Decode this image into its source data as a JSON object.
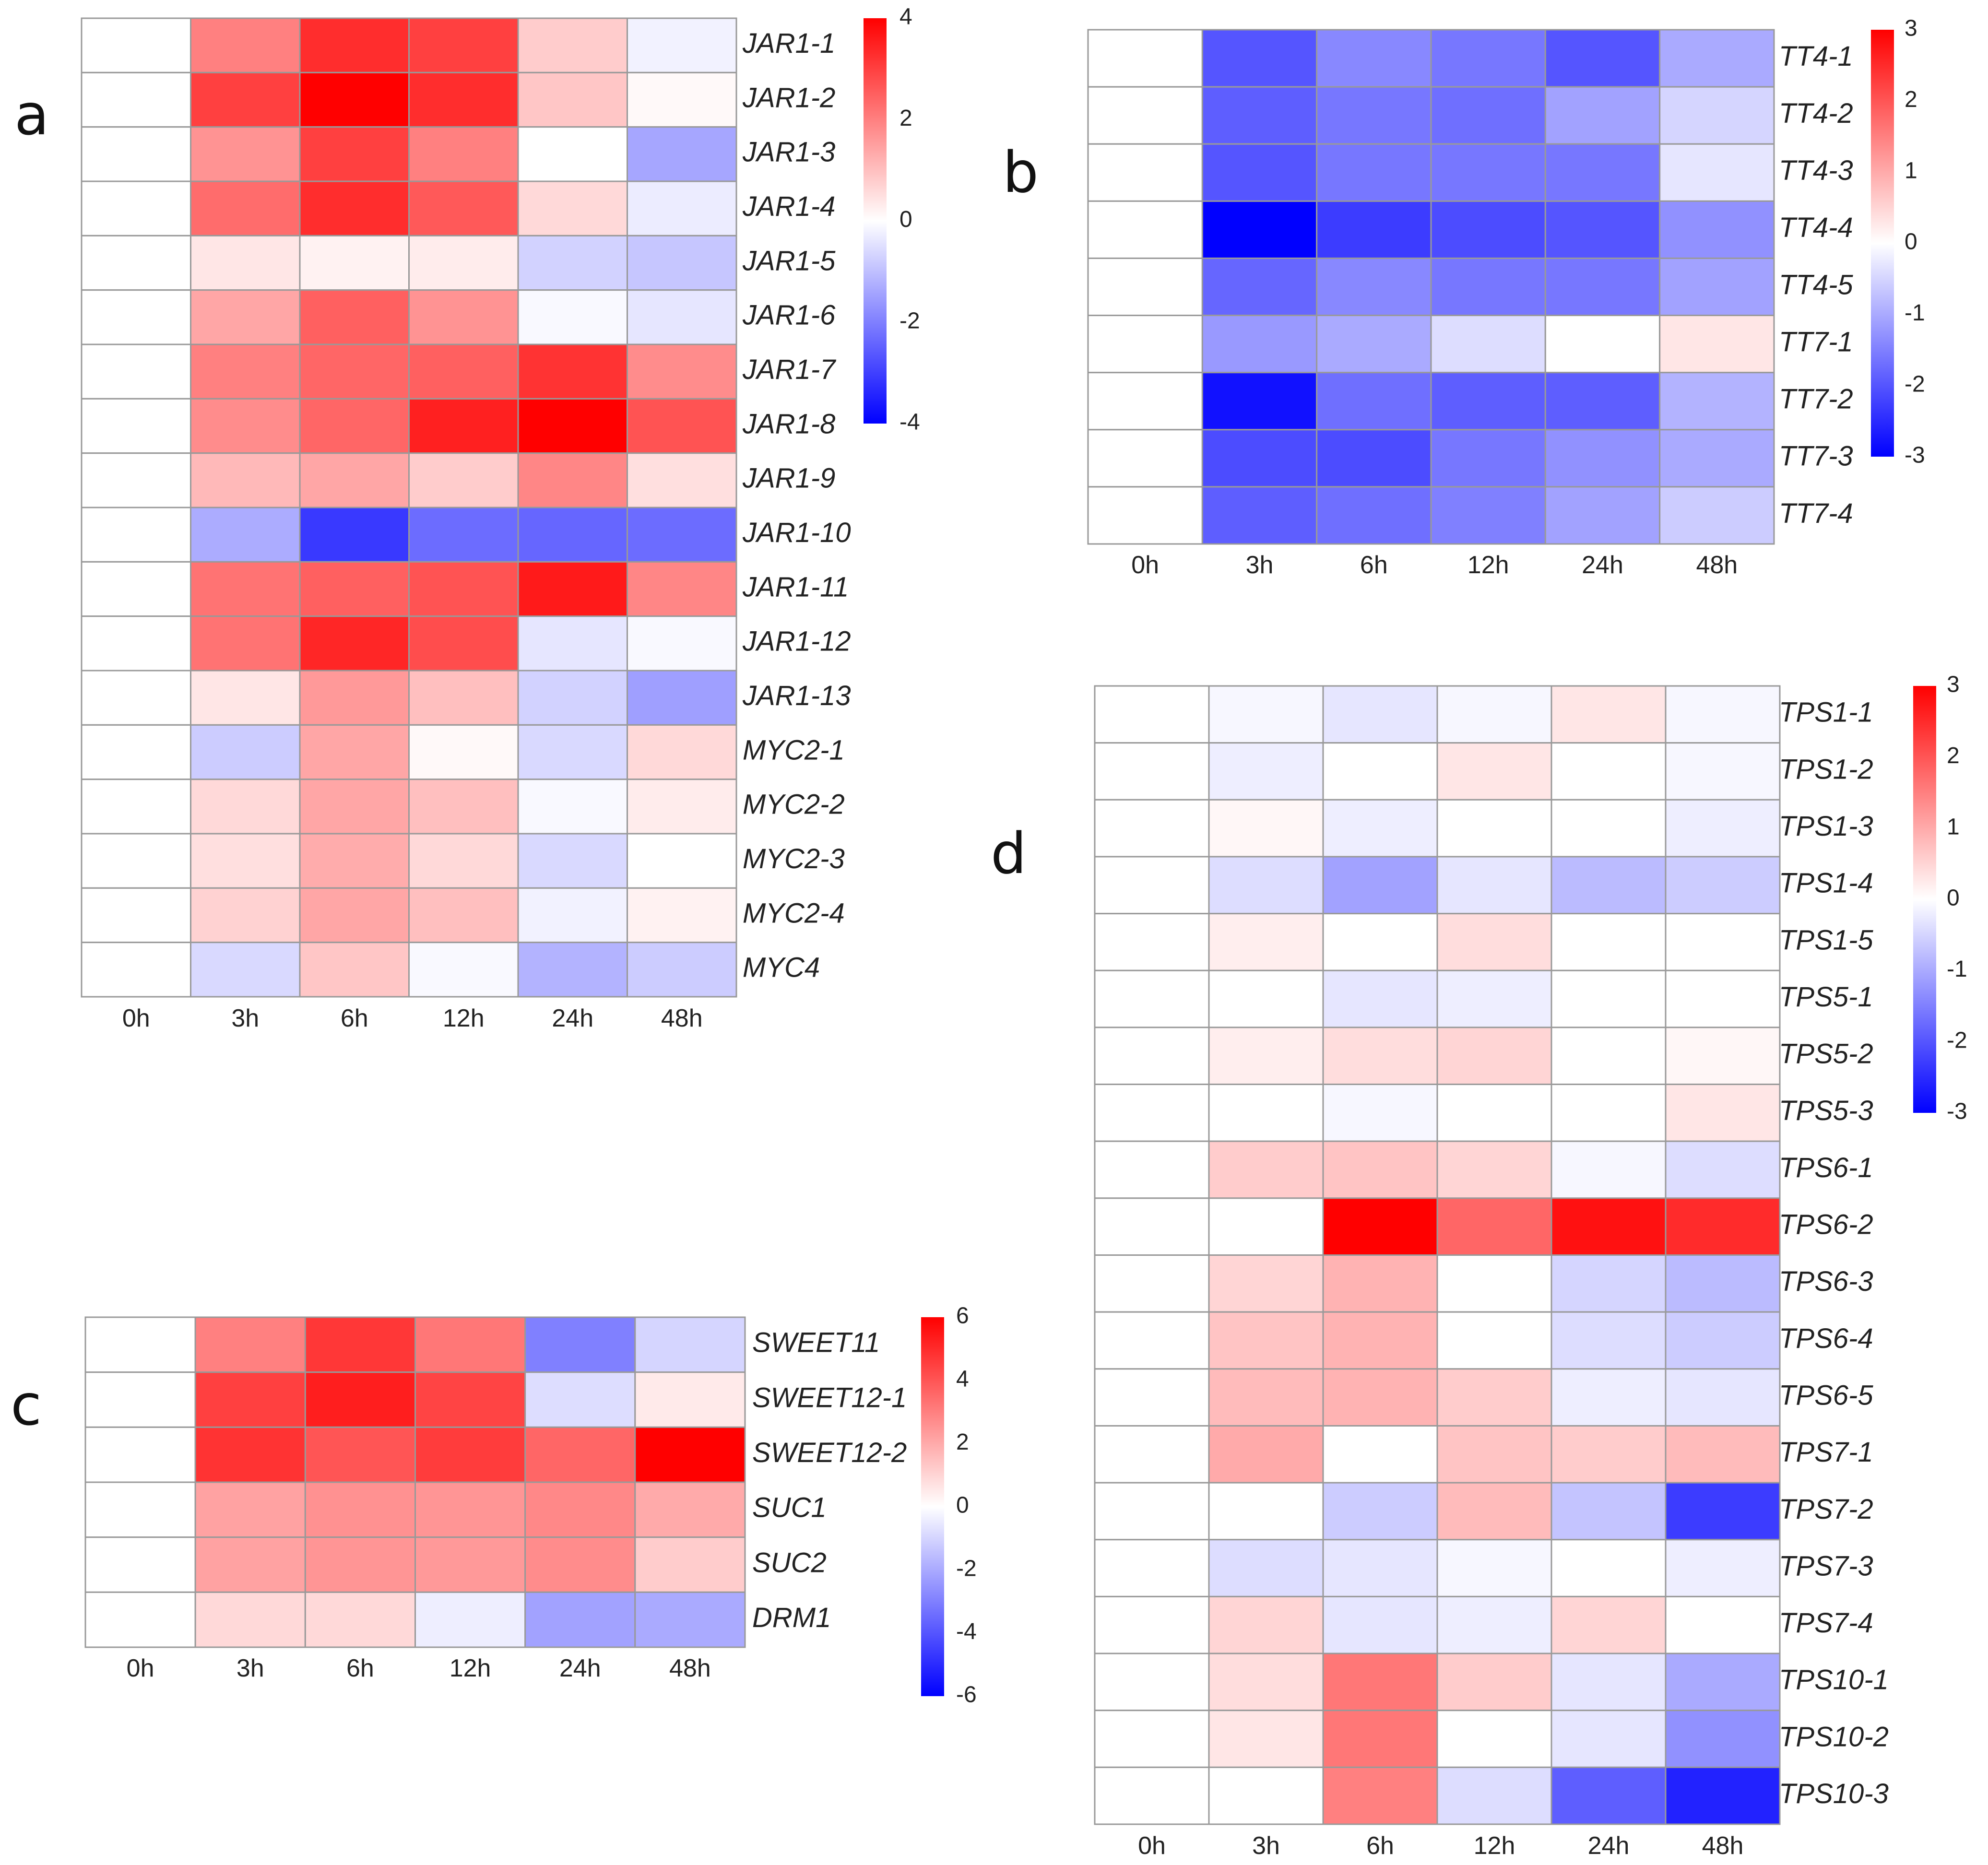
{
  "colors": {
    "low": "#0000ff",
    "mid": "#ffffff",
    "high": "#ff0000",
    "grid": "#999999"
  },
  "time_points": [
    "0h",
    "3h",
    "6h",
    "12h",
    "24h",
    "48h"
  ],
  "chart_data": [
    {
      "panel": "a",
      "type": "heatmap",
      "columns": [
        "0h",
        "3h",
        "6h",
        "12h",
        "24h",
        "48h"
      ],
      "rows": [
        "JAR1-1",
        "JAR1-2",
        "JAR1-3",
        "JAR1-4",
        "JAR1-5",
        "JAR1-6",
        "JAR1-7",
        "JAR1-8",
        "JAR1-9",
        "JAR1-10",
        "JAR1-11",
        "JAR1-12",
        "JAR1-13",
        "MYC2-1",
        "MYC2-2",
        "MYC2-3",
        "MYC2-4",
        "MYC4"
      ],
      "values": [
        [
          0,
          2.0,
          3.3,
          3.0,
          0.8,
          -0.2
        ],
        [
          0,
          3.0,
          4.0,
          3.3,
          0.9,
          0.1
        ],
        [
          0,
          1.7,
          3.0,
          2.0,
          0.0,
          -1.4
        ],
        [
          0,
          2.3,
          3.3,
          2.6,
          0.6,
          -0.3
        ],
        [
          0,
          0.4,
          0.2,
          0.3,
          -0.7,
          -0.9
        ],
        [
          0,
          1.4,
          2.5,
          1.7,
          -0.1,
          -0.4
        ],
        [
          0,
          2.0,
          2.4,
          2.5,
          3.2,
          1.8
        ],
        [
          0,
          1.8,
          2.4,
          3.5,
          4.0,
          2.7
        ],
        [
          0,
          1.1,
          1.4,
          0.8,
          1.9,
          0.5
        ],
        [
          0,
          -1.3,
          -3.1,
          -2.3,
          -2.4,
          -2.3
        ],
        [
          0,
          2.2,
          2.5,
          2.7,
          3.6,
          1.9
        ],
        [
          0,
          2.2,
          3.4,
          2.8,
          -0.4,
          -0.1
        ],
        [
          0,
          0.4,
          1.6,
          1.0,
          -0.7,
          -1.5
        ],
        [
          0,
          -0.8,
          1.4,
          0.1,
          -0.6,
          0.6
        ],
        [
          0,
          0.6,
          1.4,
          1.0,
          -0.1,
          0.3
        ],
        [
          0,
          0.5,
          1.3,
          0.6,
          -0.6,
          0.0
        ],
        [
          0,
          0.7,
          1.4,
          1.0,
          -0.2,
          0.2
        ],
        [
          0,
          -0.6,
          0.9,
          -0.1,
          -1.2,
          -0.8
        ]
      ],
      "colorbar": {
        "min": -4,
        "max": 4,
        "ticks": [
          4,
          2,
          0,
          -2,
          -4
        ]
      }
    },
    {
      "panel": "b",
      "type": "heatmap",
      "columns": [
        "0h",
        "3h",
        "6h",
        "12h",
        "24h",
        "48h"
      ],
      "rows": [
        "TT4-1",
        "TT4-2",
        "TT4-3",
        "TT4-4",
        "TT4-5",
        "TT7-1",
        "TT7-2",
        "TT7-3",
        "TT7-4"
      ],
      "values": [
        [
          0,
          -2.0,
          -1.4,
          -1.6,
          -2.0,
          -1.0
        ],
        [
          0,
          -1.9,
          -1.6,
          -1.7,
          -1.1,
          -0.5
        ],
        [
          0,
          -2.0,
          -1.6,
          -1.6,
          -1.6,
          -0.3
        ],
        [
          0,
          -3.0,
          -2.3,
          -2.1,
          -2.0,
          -1.3
        ],
        [
          0,
          -1.8,
          -1.4,
          -1.6,
          -1.6,
          -1.1
        ],
        [
          0,
          -1.2,
          -1.0,
          -0.4,
          0.0,
          0.3
        ],
        [
          0,
          -2.8,
          -1.7,
          -1.9,
          -1.9,
          -0.9
        ],
        [
          0,
          -2.1,
          -2.1,
          -1.6,
          -1.3,
          -1.0
        ],
        [
          0,
          -1.9,
          -1.7,
          -1.5,
          -1.1,
          -0.6
        ]
      ],
      "colorbar": {
        "min": -3,
        "max": 3,
        "ticks": [
          3,
          2,
          1,
          0,
          -1,
          -2,
          -3
        ]
      }
    },
    {
      "panel": "c",
      "type": "heatmap",
      "columns": [
        "0h",
        "3h",
        "6h",
        "12h",
        "24h",
        "48h"
      ],
      "rows": [
        "SWEET11",
        "SWEET12-1",
        "SWEET12-2",
        "SUC1",
        "SUC2",
        "DRM1"
      ],
      "values": [
        [
          0,
          3.0,
          4.7,
          3.2,
          -3.0,
          -1.0
        ],
        [
          0,
          4.5,
          5.3,
          4.4,
          -0.8,
          0.5
        ],
        [
          0,
          4.8,
          4.0,
          4.6,
          3.6,
          6.0
        ],
        [
          0,
          2.2,
          2.6,
          2.5,
          2.8,
          2.0
        ],
        [
          0,
          2.2,
          2.5,
          2.4,
          2.7,
          1.2
        ],
        [
          0,
          0.9,
          0.9,
          -0.4,
          -2.2,
          -2.0
        ]
      ],
      "colorbar": {
        "min": -6,
        "max": 6,
        "ticks": [
          6,
          4,
          2,
          0,
          -2,
          -4,
          -6
        ]
      }
    },
    {
      "panel": "d",
      "type": "heatmap",
      "columns": [
        "0h",
        "3h",
        "6h",
        "12h",
        "24h",
        "48h"
      ],
      "rows": [
        "TPS1-1",
        "TPS1-2",
        "TPS1-3",
        "TPS1-4",
        "TPS1-5",
        "TPS5-1",
        "TPS5-2",
        "TPS5-3",
        "TPS6-1",
        "TPS6-2",
        "TPS6-3",
        "TPS6-4",
        "TPS6-5",
        "TPS7-1",
        "TPS7-2",
        "TPS7-3",
        "TPS7-4",
        "TPS10-1",
        "TPS10-2",
        "TPS10-3"
      ],
      "values": [
        [
          0,
          -0.1,
          -0.3,
          -0.1,
          0.3,
          -0.1
        ],
        [
          0,
          -0.2,
          0.0,
          0.3,
          0.0,
          -0.1
        ],
        [
          0,
          0.1,
          -0.2,
          0.0,
          0.0,
          -0.2
        ],
        [
          0,
          -0.4,
          -1.1,
          -0.3,
          -0.8,
          -0.6
        ],
        [
          0,
          0.2,
          0.0,
          0.4,
          0.0,
          0.0
        ],
        [
          0,
          0.0,
          -0.3,
          -0.2,
          0.0,
          0.0
        ],
        [
          0,
          0.2,
          0.4,
          0.5,
          0.0,
          0.1
        ],
        [
          0,
          0.0,
          -0.1,
          0.0,
          0.0,
          0.3
        ],
        [
          0,
          0.6,
          0.7,
          0.5,
          -0.1,
          -0.4
        ],
        [
          0,
          0.0,
          3.0,
          1.8,
          2.8,
          2.5
        ],
        [
          0,
          0.5,
          0.9,
          0.0,
          -0.5,
          -0.8
        ],
        [
          0,
          0.7,
          0.9,
          0.0,
          -0.4,
          -0.6
        ],
        [
          0,
          0.8,
          0.9,
          0.6,
          -0.2,
          -0.3
        ],
        [
          0,
          1.0,
          0.0,
          0.7,
          0.6,
          0.8
        ],
        [
          0,
          0.0,
          -0.6,
          0.8,
          -0.7,
          -2.3
        ],
        [
          0,
          -0.4,
          -0.3,
          -0.1,
          0.0,
          -0.2
        ],
        [
          0,
          0.5,
          -0.3,
          -0.2,
          0.5,
          0.0
        ],
        [
          0,
          0.4,
          1.6,
          0.6,
          -0.3,
          -1.0
        ],
        [
          0,
          0.3,
          1.6,
          0.0,
          -0.3,
          -1.3
        ],
        [
          0,
          0.0,
          1.5,
          -0.4,
          -1.9,
          -2.6
        ]
      ],
      "colorbar": {
        "min": -3,
        "max": 3,
        "ticks": [
          3,
          2,
          1,
          0,
          -1,
          -2,
          -3
        ]
      }
    }
  ]
}
